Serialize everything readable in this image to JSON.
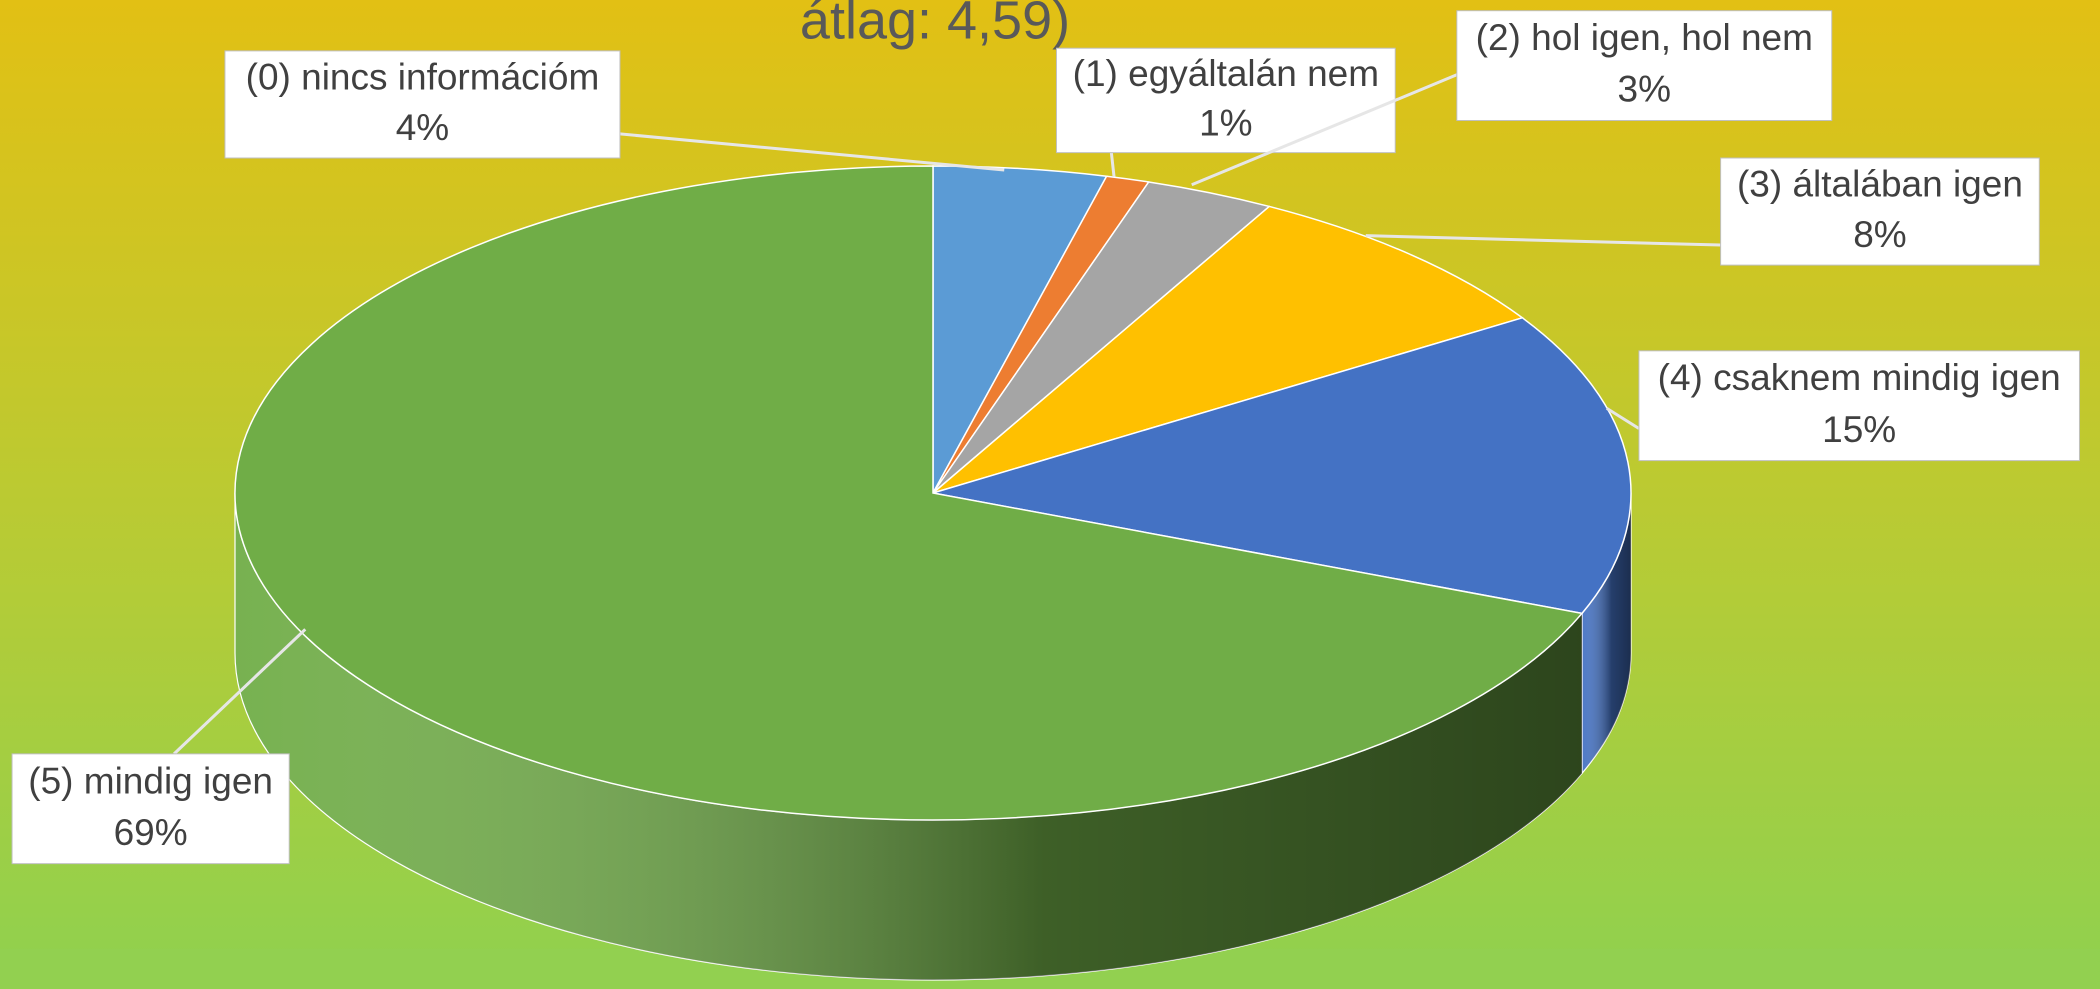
{
  "chart_data": {
    "type": "pie3d",
    "title": "átlag: 4,59)",
    "categories": [
      "(0) nincs információm",
      "(1) egyáltalán nem",
      "(2) hol igen, hol nem",
      "(3) általában igen",
      "(4) csaknem mindig igen",
      "(5) mindig igen"
    ],
    "values": [
      4,
      1,
      3,
      8,
      15,
      69
    ],
    "value_labels": [
      "4%",
      "1%",
      "3%",
      "8%",
      "15%",
      "69%"
    ],
    "colors": [
      "#5b9bd5",
      "#ed7d31",
      "#a5a5a5",
      "#ffc000",
      "#4472c4",
      "#70ad47"
    ]
  }
}
